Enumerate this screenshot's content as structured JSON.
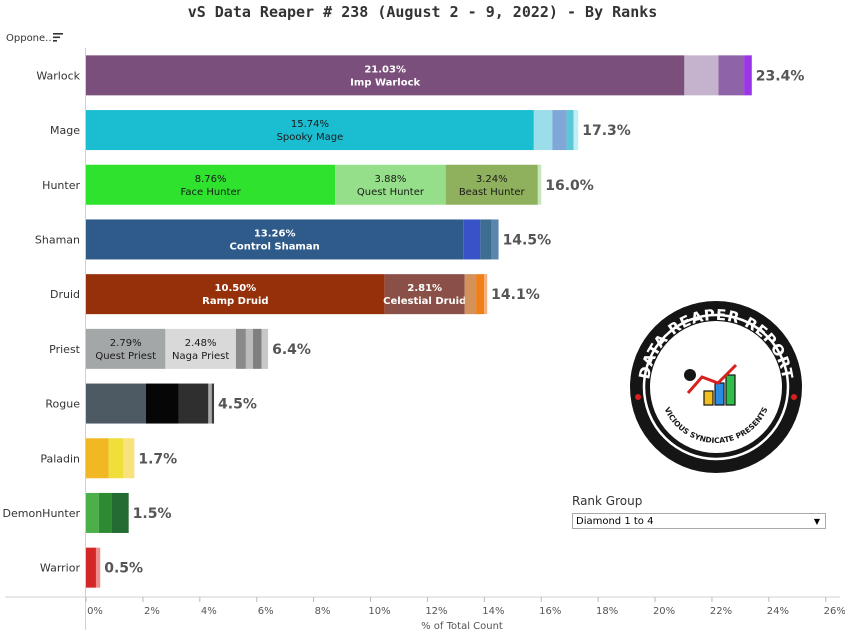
{
  "title": "vS Data Reaper #  238 (August 2 - 9, 2022) - By Ranks",
  "row_header": "Oppone..",
  "icons": {
    "sort": "sort-descending-icon",
    "logo": "data-reaper-report-logo",
    "dropdown": "chevron-down-icon"
  },
  "logo_text": {
    "top": "DATA REAPER REPORT",
    "bottom": "VICIOUS SYNDICATE PRESENTS"
  },
  "filter": {
    "label": "Rank Group",
    "value": "Diamond 1 to 4"
  },
  "chart_data": {
    "type": "bar",
    "orientation": "horizontal",
    "stacked": true,
    "xlabel": "% of Total Count",
    "xlim": [
      0,
      26.5
    ],
    "xticks": [
      "0%",
      "2%",
      "4%",
      "6%",
      "8%",
      "10%",
      "12%",
      "14%",
      "16%",
      "18%",
      "20%",
      "22%",
      "24%",
      "26%"
    ],
    "grid": false,
    "categories": [
      "Warlock",
      "Mage",
      "Hunter",
      "Shaman",
      "Druid",
      "Priest",
      "Rogue",
      "Paladin",
      "DemonHunter",
      "Warrior"
    ],
    "totals": [
      "23.4%",
      "17.3%",
      "16.0%",
      "14.5%",
      "14.1%",
      "6.4%",
      "4.5%",
      "1.7%",
      "1.5%",
      "0.5%"
    ],
    "rows": [
      {
        "class": "Warlock",
        "segments": [
          {
            "value": 21.03,
            "pct": "21.03%",
            "name": "Imp Warlock",
            "color": "#7a4f7b",
            "text": "#ffffff",
            "bold": true
          },
          {
            "value": 1.2,
            "color": "#c5b2cc"
          },
          {
            "value": 0.9,
            "color": "#8e63a8"
          },
          {
            "value": 0.27,
            "color": "#9b35e8"
          }
        ]
      },
      {
        "class": "Mage",
        "segments": [
          {
            "value": 15.74,
            "pct": "15.74%",
            "name": "Spooky Mage",
            "color": "#1bbdd1",
            "text": "#1a1a1a"
          },
          {
            "value": 0.65,
            "color": "#9bdde9"
          },
          {
            "value": 0.5,
            "color": "#7fa8d8"
          },
          {
            "value": 0.25,
            "color": "#5bc8d8"
          },
          {
            "value": 0.16,
            "color": "#bfeef5"
          }
        ]
      },
      {
        "class": "Hunter",
        "segments": [
          {
            "value": 8.76,
            "pct": "8.76%",
            "name": "Face Hunter",
            "color": "#2ee22e",
            "text": "#1a1a1a"
          },
          {
            "value": 3.88,
            "pct": "3.88%",
            "name": "Quest Hunter",
            "color": "#96df8a",
            "text": "#1a1a1a"
          },
          {
            "value": 3.24,
            "pct": "3.24%",
            "name": "Beast Hunter",
            "color": "#8fb05c",
            "text": "#1a1a1a"
          },
          {
            "value": 0.12,
            "color": "#c6e5b8"
          }
        ]
      },
      {
        "class": "Shaman",
        "segments": [
          {
            "value": 13.26,
            "pct": "13.26%",
            "name": "Control Shaman",
            "color": "#2e5b8a",
            "text": "#ffffff",
            "bold": true
          },
          {
            "value": 0.6,
            "color": "#3852c8"
          },
          {
            "value": 0.4,
            "color": "#3d6e92"
          },
          {
            "value": 0.24,
            "color": "#5a86ad"
          }
        ]
      },
      {
        "class": "Druid",
        "segments": [
          {
            "value": 10.5,
            "pct": "10.50%",
            "name": "Ramp Druid",
            "color": "#96300a",
            "text": "#ffffff",
            "bold": true
          },
          {
            "value": 2.81,
            "pct": "2.81%",
            "name": "Celestial Druid",
            "color": "#8a5047",
            "text": "#ffffff",
            "bold": true
          },
          {
            "value": 0.4,
            "color": "#d4925a"
          },
          {
            "value": 0.28,
            "color": "#f07f1a"
          },
          {
            "value": 0.11,
            "color": "#f3b07a"
          }
        ]
      },
      {
        "class": "Priest",
        "segments": [
          {
            "value": 2.79,
            "pct": "2.79%",
            "name": "Quest Priest",
            "color": "#a3a7a8",
            "text": "#1a1a1a"
          },
          {
            "value": 2.48,
            "pct": "2.48%",
            "name": "Naga Priest",
            "color": "#d9d9d9",
            "text": "#1a1a1a"
          },
          {
            "value": 0.35,
            "color": "#8a8a8a"
          },
          {
            "value": 0.25,
            "color": "#bcbcbc"
          },
          {
            "value": 0.3,
            "color": "#7f7f7f"
          },
          {
            "value": 0.23,
            "color": "#c8c8c8"
          }
        ]
      },
      {
        "class": "Rogue",
        "segments": [
          {
            "value": 2.1,
            "color": "#4e5a63"
          },
          {
            "value": 1.15,
            "color": "#060606"
          },
          {
            "value": 1.05,
            "color": "#2f2f2f"
          },
          {
            "value": 0.12,
            "color": "#a8a8a8"
          },
          {
            "value": 0.08,
            "color": "#3a3a3a"
          }
        ]
      },
      {
        "class": "Paladin",
        "segments": [
          {
            "value": 0.8,
            "color": "#f2b824"
          },
          {
            "value": 0.5,
            "color": "#f0de3a"
          },
          {
            "value": 0.4,
            "color": "#f8e27e"
          }
        ]
      },
      {
        "class": "DemonHunter",
        "segments": [
          {
            "value": 0.45,
            "color": "#4cb048"
          },
          {
            "value": 0.45,
            "color": "#2e8b34"
          },
          {
            "value": 0.6,
            "color": "#226b33"
          }
        ]
      },
      {
        "class": "Warrior",
        "segments": [
          {
            "value": 0.35,
            "color": "#d42626"
          },
          {
            "value": 0.15,
            "color": "#ee8f8f"
          }
        ]
      }
    ]
  }
}
